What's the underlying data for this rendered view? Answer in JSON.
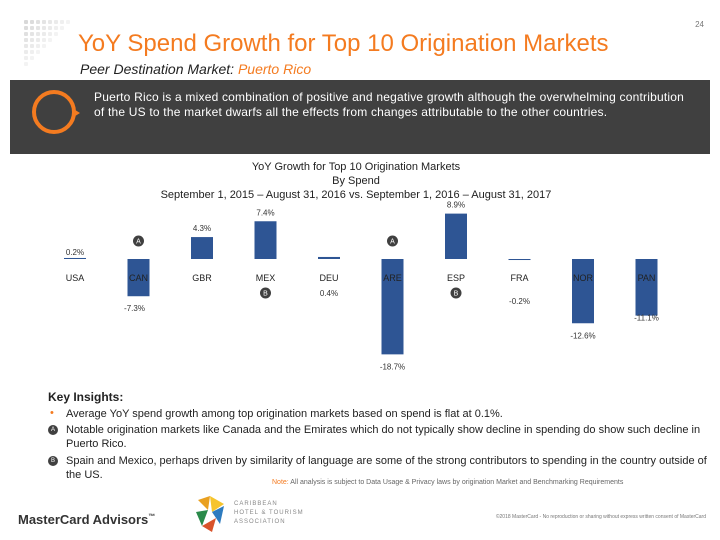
{
  "header": {
    "title": "YoY Spend Growth for Top 10 Origination Markets",
    "page_number": "24",
    "subtitle_prefix": "Peer Destination Market:",
    "subtitle_market": "Puerto Rico"
  },
  "banner": {
    "text": "Puerto Rico is a mixed combination of positive and negative growth although the overwhelming contribution of the US to the market dwarfs all the effects from changes attributable to the other countries."
  },
  "chart_data": {
    "type": "bar",
    "title_lines": [
      "YoY Growth for Top 10 Origination Markets",
      "By Spend",
      "September 1, 2015 – August 31, 2016 vs. September 1, 2016 – August 31, 2017"
    ],
    "categories": [
      "USA",
      "CAN",
      "GBR",
      "MEX",
      "DEU",
      "ARE",
      "ESP",
      "FRA",
      "NOR",
      "PAN"
    ],
    "values": [
      0.2,
      -7.3,
      4.3,
      7.4,
      0.4,
      -18.7,
      8.9,
      -0.2,
      -12.6,
      -11.1
    ],
    "value_labels": [
      "0.2%",
      "-7.3%",
      "4.3%",
      "7.4%",
      "0.4%",
      "-18.7%",
      "8.9%",
      "-0.2%",
      "-12.6%",
      "-11.1%"
    ],
    "markers": {
      "CAN": "A",
      "ARE": "A",
      "MEX": "B",
      "ESP": "B"
    },
    "ylim": [
      -20,
      10
    ],
    "series_color": "#2e5594"
  },
  "insights": {
    "heading": "Key Insights:",
    "bullet": "•",
    "items": [
      {
        "marker": "",
        "text": "Average YoY spend growth among top origination markets based on spend is flat at 0.1%."
      },
      {
        "marker": "A",
        "text": "Notable origination markets like Canada and the Emirates which do not typically show decline in spending do show such decline in Puerto Rico."
      },
      {
        "marker": "B",
        "text": "Spain and Mexico, perhaps driven by similarity of language are some of the strong contributors to spending in the country outside of the US."
      }
    ]
  },
  "note": {
    "label": "Note:",
    "text": "All analysis is subject to Data Usage & Privacy laws by origination Market and Benchmarking Requirements"
  },
  "footer": {
    "mastercard_logo": "MasterCard Advisors",
    "trademark": "™",
    "association_logo": [
      "CARIBBEAN",
      "HOTEL & TOURISM",
      "ASSOCIATION"
    ],
    "copyright": "©2018 MasterCard - No reproduction or sharing without express written consent of MasterCard"
  },
  "colors": {
    "accent": "#f47b20",
    "banner": "#404040",
    "bar": "#2e5594"
  }
}
